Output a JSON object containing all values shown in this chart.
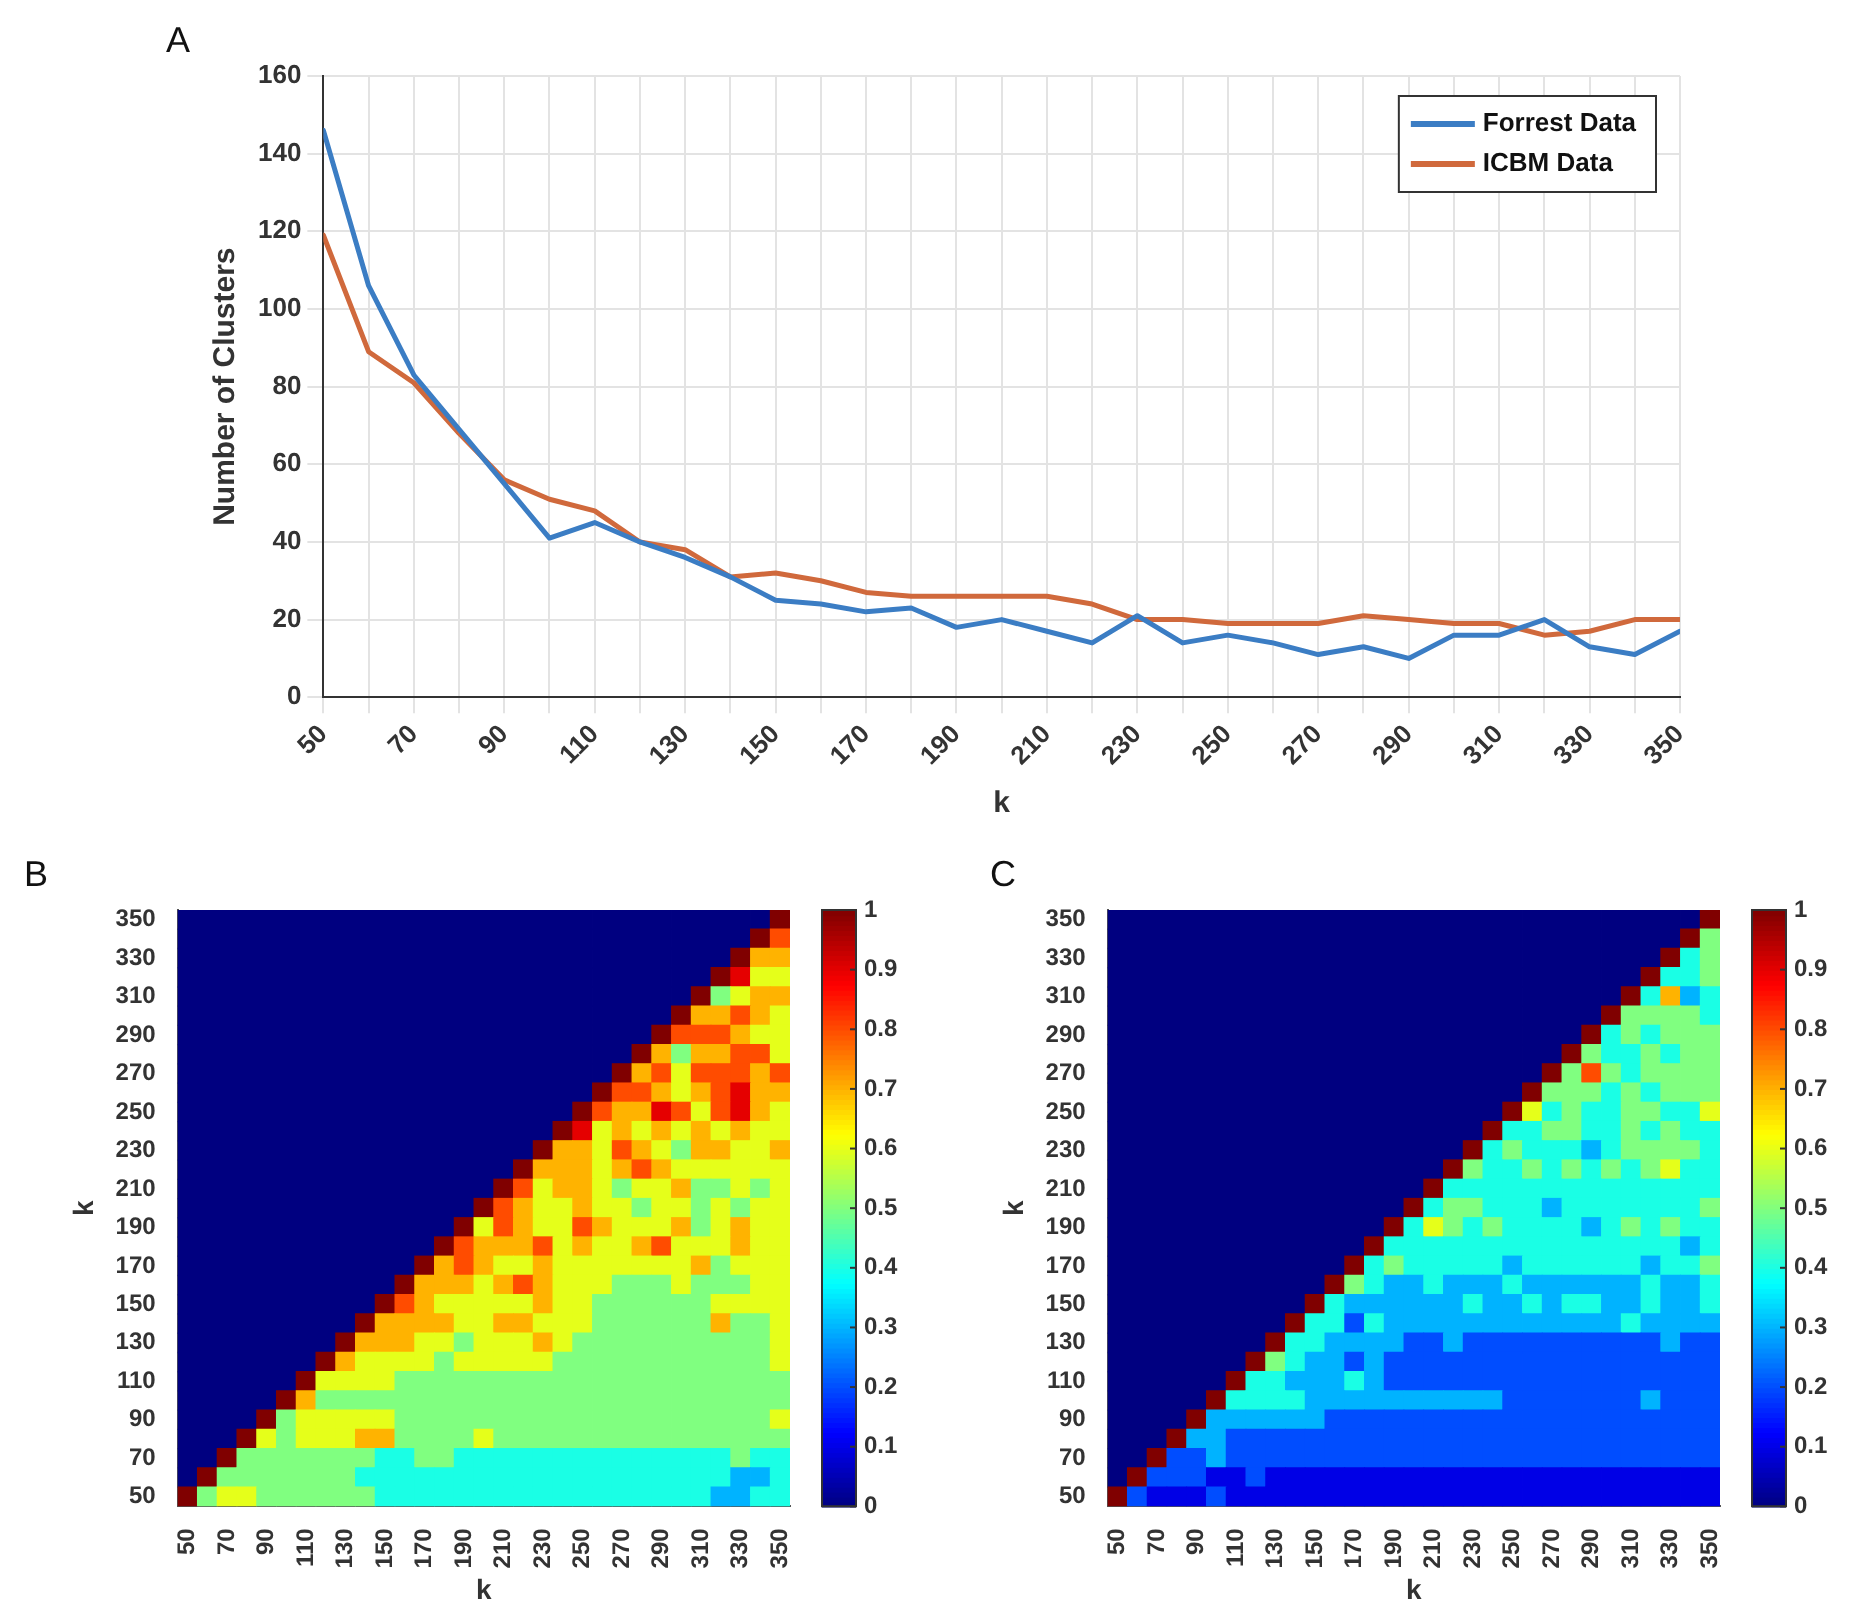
{
  "chart_data": [
    {
      "type": "line",
      "xlabel": "k",
      "ylabel": "Number of Clusters",
      "annotations": [
        "A"
      ],
      "x": [
        50,
        60,
        70,
        80,
        90,
        100,
        110,
        120,
        130,
        140,
        150,
        160,
        170,
        180,
        190,
        200,
        210,
        220,
        230,
        240,
        250,
        260,
        270,
        280,
        290,
        300,
        310,
        320,
        330,
        340,
        350
      ],
      "xlim": [
        50,
        350
      ],
      "xticks": [
        50,
        {
          "value": 60,
          "label": null
        },
        70,
        {
          "value": 80,
          "label": null
        },
        90,
        {
          "value": 100,
          "label": null
        },
        110,
        {
          "value": 120,
          "label": null
        },
        130,
        {
          "value": 140,
          "label": null
        },
        150,
        {
          "value": 160,
          "label": null
        },
        170,
        {
          "value": 180,
          "label": null
        },
        190,
        {
          "value": 200,
          "label": null
        },
        210,
        {
          "value": 220,
          "label": null
        },
        230,
        {
          "value": 240,
          "label": null
        },
        250,
        {
          "value": 260,
          "label": null
        },
        270,
        {
          "value": 280,
          "label": null
        },
        290,
        {
          "value": 300,
          "label": null
        },
        310,
        {
          "value": 320,
          "label": null
        },
        330,
        {
          "value": 340,
          "label": null
        },
        350
      ],
      "ylim": [
        0,
        160
      ],
      "yticks": [
        0,
        20,
        40,
        60,
        80,
        100,
        120,
        140,
        160
      ],
      "grid": true,
      "legend": "top right",
      "series": [
        {
          "name": "Forrest Data",
          "color": "#3b7dc4",
          "values": [
            146,
            106,
            83,
            69,
            55,
            41,
            45,
            40,
            36,
            31,
            25,
            24,
            22,
            23,
            18,
            20,
            17,
            14,
            21,
            14,
            16,
            14,
            11,
            13,
            10,
            16,
            16,
            20,
            13,
            11,
            17
          ]
        },
        {
          "name": "ICBM Data",
          "color": "#d0693c",
          "values": [
            119,
            89,
            81,
            68,
            56,
            51,
            48,
            40,
            38,
            31,
            32,
            30,
            27,
            26,
            26,
            26,
            26,
            24,
            20,
            20,
            19,
            19,
            19,
            21,
            20,
            19,
            19,
            16,
            17,
            20,
            20
          ]
        }
      ]
    },
    {
      "type": "heatmap",
      "xlabel": "k",
      "ylabel": "k",
      "annotations": [
        "B"
      ],
      "categories": [
        "50",
        null,
        "70",
        null,
        "90",
        null,
        "110",
        null,
        "130",
        null,
        "150",
        null,
        "170",
        null,
        "190",
        null,
        "210",
        null,
        "230",
        null,
        "250",
        null,
        "270",
        null,
        "290",
        null,
        "310",
        null,
        "330",
        null,
        "350"
      ],
      "y_categories": [
        "350",
        null,
        "330",
        null,
        "310",
        null,
        "290",
        null,
        "270",
        null,
        "250",
        null,
        "230",
        null,
        "210",
        null,
        "190",
        null,
        "170",
        null,
        "150",
        null,
        "130",
        null,
        "110",
        null,
        "90",
        null,
        "70",
        null,
        "50"
      ],
      "clim": [
        0,
        1
      ],
      "cticks": [
        0,
        0.1,
        0.2,
        0.3,
        0.4,
        0.5,
        0.6,
        0.7,
        0.8,
        0.9,
        1
      ],
      "cells": [
        [
          0,
          0,
          0,
          0,
          0,
          0,
          0,
          0,
          0,
          0,
          0,
          0,
          0,
          0,
          0,
          0,
          0,
          0,
          0,
          0,
          0,
          0,
          0,
          0,
          0,
          0,
          0,
          0,
          0,
          0,
          1
        ],
        [
          0,
          0,
          0,
          0,
          0,
          0,
          0,
          0,
          0,
          0,
          0,
          0,
          0,
          0,
          0,
          0,
          0,
          0,
          0,
          0,
          0,
          0,
          0,
          0,
          0,
          0,
          0,
          0,
          0,
          1,
          0.8
        ],
        [
          0,
          0,
          0,
          0,
          0,
          0,
          0,
          0,
          0,
          0,
          0,
          0,
          0,
          0,
          0,
          0,
          0,
          0,
          0,
          0,
          0,
          0,
          0,
          0,
          0,
          0,
          0,
          0,
          1,
          0.7,
          0.7
        ],
        [
          0,
          0,
          0,
          0,
          0,
          0,
          0,
          0,
          0,
          0,
          0,
          0,
          0,
          0,
          0,
          0,
          0,
          0,
          0,
          0,
          0,
          0,
          0,
          0,
          0,
          0,
          0,
          1,
          0.9,
          0.6,
          0.6
        ],
        [
          0,
          0,
          0,
          0,
          0,
          0,
          0,
          0,
          0,
          0,
          0,
          0,
          0,
          0,
          0,
          0,
          0,
          0,
          0,
          0,
          0,
          0,
          0,
          0,
          0,
          0,
          1,
          0.5,
          0.6,
          0.7,
          0.7
        ],
        [
          0,
          0,
          0,
          0,
          0,
          0,
          0,
          0,
          0,
          0,
          0,
          0,
          0,
          0,
          0,
          0,
          0,
          0,
          0,
          0,
          0,
          0,
          0,
          0,
          0,
          1,
          0.7,
          0.7,
          0.8,
          0.7,
          0.6
        ],
        [
          0,
          0,
          0,
          0,
          0,
          0,
          0,
          0,
          0,
          0,
          0,
          0,
          0,
          0,
          0,
          0,
          0,
          0,
          0,
          0,
          0,
          0,
          0,
          0,
          1,
          0.8,
          0.8,
          0.8,
          0.7,
          0.6,
          0.6
        ],
        [
          0,
          0,
          0,
          0,
          0,
          0,
          0,
          0,
          0,
          0,
          0,
          0,
          0,
          0,
          0,
          0,
          0,
          0,
          0,
          0,
          0,
          0,
          0,
          1,
          0.7,
          0.5,
          0.7,
          0.7,
          0.8,
          0.8,
          0.6
        ],
        [
          0,
          0,
          0,
          0,
          0,
          0,
          0,
          0,
          0,
          0,
          0,
          0,
          0,
          0,
          0,
          0,
          0,
          0,
          0,
          0,
          0,
          0,
          1,
          0.7,
          0.8,
          0.6,
          0.8,
          0.8,
          0.8,
          0.7,
          0.8
        ],
        [
          0,
          0,
          0,
          0,
          0,
          0,
          0,
          0,
          0,
          0,
          0,
          0,
          0,
          0,
          0,
          0,
          0,
          0,
          0,
          0,
          0,
          1,
          0.8,
          0.8,
          0.7,
          0.6,
          0.7,
          0.8,
          0.9,
          0.7,
          0.7
        ],
        [
          0,
          0,
          0,
          0,
          0,
          0,
          0,
          0,
          0,
          0,
          0,
          0,
          0,
          0,
          0,
          0,
          0,
          0,
          0,
          0,
          1,
          0.8,
          0.7,
          0.7,
          0.9,
          0.8,
          0.6,
          0.8,
          0.9,
          0.7,
          0.6
        ],
        [
          0,
          0,
          0,
          0,
          0,
          0,
          0,
          0,
          0,
          0,
          0,
          0,
          0,
          0,
          0,
          0,
          0,
          0,
          0,
          1,
          0.9,
          0.6,
          0.7,
          0.6,
          0.7,
          0.6,
          0.7,
          0.6,
          0.7,
          0.6,
          0.6
        ],
        [
          0,
          0,
          0,
          0,
          0,
          0,
          0,
          0,
          0,
          0,
          0,
          0,
          0,
          0,
          0,
          0,
          0,
          0,
          1,
          0.7,
          0.7,
          0.6,
          0.8,
          0.7,
          0.6,
          0.5,
          0.7,
          0.7,
          0.6,
          0.6,
          0.7
        ],
        [
          0,
          0,
          0,
          0,
          0,
          0,
          0,
          0,
          0,
          0,
          0,
          0,
          0,
          0,
          0,
          0,
          0,
          1,
          0.7,
          0.7,
          0.7,
          0.6,
          0.7,
          0.8,
          0.7,
          0.6,
          0.6,
          0.6,
          0.6,
          0.6,
          0.6
        ],
        [
          0,
          0,
          0,
          0,
          0,
          0,
          0,
          0,
          0,
          0,
          0,
          0,
          0,
          0,
          0,
          0,
          1,
          0.8,
          0.6,
          0.7,
          0.7,
          0.6,
          0.5,
          0.6,
          0.6,
          0.7,
          0.5,
          0.5,
          0.6,
          0.5,
          0.6
        ],
        [
          0,
          0,
          0,
          0,
          0,
          0,
          0,
          0,
          0,
          0,
          0,
          0,
          0,
          0,
          0,
          1,
          0.8,
          0.7,
          0.6,
          0.6,
          0.7,
          0.6,
          0.6,
          0.5,
          0.6,
          0.6,
          0.5,
          0.6,
          0.5,
          0.6,
          0.6
        ],
        [
          0,
          0,
          0,
          0,
          0,
          0,
          0,
          0,
          0,
          0,
          0,
          0,
          0,
          0,
          1,
          0.6,
          0.8,
          0.7,
          0.6,
          0.6,
          0.8,
          0.7,
          0.6,
          0.6,
          0.6,
          0.7,
          0.5,
          0.6,
          0.7,
          0.6,
          0.6
        ],
        [
          0,
          0,
          0,
          0,
          0,
          0,
          0,
          0,
          0,
          0,
          0,
          0,
          0,
          1,
          0.8,
          0.7,
          0.7,
          0.7,
          0.8,
          0.6,
          0.7,
          0.6,
          0.6,
          0.7,
          0.8,
          0.6,
          0.6,
          0.6,
          0.7,
          0.6,
          0.6
        ],
        [
          0,
          0,
          0,
          0,
          0,
          0,
          0,
          0,
          0,
          0,
          0,
          0,
          1,
          0.7,
          0.8,
          0.7,
          0.6,
          0.6,
          0.7,
          0.6,
          0.6,
          0.6,
          0.6,
          0.6,
          0.6,
          0.6,
          0.7,
          0.5,
          0.6,
          0.6,
          0.6
        ],
        [
          0,
          0,
          0,
          0,
          0,
          0,
          0,
          0,
          0,
          0,
          0,
          1,
          0.7,
          0.7,
          0.7,
          0.6,
          0.7,
          0.8,
          0.7,
          0.6,
          0.6,
          0.6,
          0.5,
          0.5,
          0.5,
          0.6,
          0.5,
          0.5,
          0.5,
          0.6,
          0.6
        ],
        [
          0,
          0,
          0,
          0,
          0,
          0,
          0,
          0,
          0,
          0,
          1,
          0.8,
          0.7,
          0.6,
          0.6,
          0.6,
          0.6,
          0.6,
          0.7,
          0.6,
          0.6,
          0.5,
          0.5,
          0.5,
          0.5,
          0.5,
          0.5,
          0.6,
          0.6,
          0.6,
          0.6
        ],
        [
          0,
          0,
          0,
          0,
          0,
          0,
          0,
          0,
          0,
          1,
          0.7,
          0.7,
          0.7,
          0.7,
          0.6,
          0.6,
          0.7,
          0.7,
          0.6,
          0.6,
          0.6,
          0.5,
          0.5,
          0.5,
          0.5,
          0.5,
          0.5,
          0.7,
          0.5,
          0.5,
          0.6
        ],
        [
          0,
          0,
          0,
          0,
          0,
          0,
          0,
          0,
          1,
          0.7,
          0.7,
          0.7,
          0.6,
          0.6,
          0.5,
          0.6,
          0.6,
          0.6,
          0.7,
          0.6,
          0.5,
          0.5,
          0.5,
          0.5,
          0.5,
          0.5,
          0.5,
          0.5,
          0.5,
          0.5,
          0.6
        ],
        [
          0,
          0,
          0,
          0,
          0,
          0,
          0,
          1,
          0.7,
          0.6,
          0.6,
          0.6,
          0.6,
          0.5,
          0.6,
          0.6,
          0.6,
          0.6,
          0.6,
          0.5,
          0.5,
          0.5,
          0.5,
          0.5,
          0.5,
          0.5,
          0.5,
          0.5,
          0.5,
          0.5,
          0.6
        ],
        [
          0,
          0,
          0,
          0,
          0,
          0,
          1,
          0.6,
          0.6,
          0.6,
          0.6,
          0.5,
          0.5,
          0.5,
          0.5,
          0.5,
          0.5,
          0.5,
          0.5,
          0.5,
          0.5,
          0.5,
          0.5,
          0.5,
          0.5,
          0.5,
          0.5,
          0.5,
          0.5,
          0.5,
          0.5
        ],
        [
          0,
          0,
          0,
          0,
          0,
          1,
          0.7,
          0.5,
          0.5,
          0.5,
          0.5,
          0.5,
          0.5,
          0.5,
          0.5,
          0.5,
          0.5,
          0.5,
          0.5,
          0.5,
          0.5,
          0.5,
          0.5,
          0.5,
          0.5,
          0.5,
          0.5,
          0.5,
          0.5,
          0.5,
          0.5
        ],
        [
          0,
          0,
          0,
          0,
          1,
          0.5,
          0.6,
          0.6,
          0.6,
          0.6,
          0.6,
          0.5,
          0.5,
          0.5,
          0.5,
          0.5,
          0.5,
          0.5,
          0.5,
          0.5,
          0.5,
          0.5,
          0.5,
          0.5,
          0.5,
          0.5,
          0.5,
          0.5,
          0.5,
          0.5,
          0.6
        ],
        [
          0,
          0,
          0,
          1,
          0.6,
          0.5,
          0.6,
          0.6,
          0.6,
          0.7,
          0.7,
          0.5,
          0.5,
          0.5,
          0.5,
          0.6,
          0.5,
          0.5,
          0.5,
          0.5,
          0.5,
          0.5,
          0.5,
          0.5,
          0.5,
          0.5,
          0.5,
          0.5,
          0.5,
          0.5,
          0.5
        ],
        [
          0,
          0,
          1,
          0.5,
          0.5,
          0.5,
          0.5,
          0.5,
          0.5,
          0.5,
          0.4,
          0.4,
          0.5,
          0.5,
          0.4,
          0.4,
          0.4,
          0.4,
          0.4,
          0.4,
          0.4,
          0.4,
          0.4,
          0.4,
          0.4,
          0.4,
          0.4,
          0.4,
          0.5,
          0.4,
          0.4
        ],
        [
          0,
          1,
          0.5,
          0.5,
          0.5,
          0.5,
          0.5,
          0.5,
          0.5,
          0.4,
          0.4,
          0.4,
          0.4,
          0.4,
          0.4,
          0.4,
          0.4,
          0.4,
          0.4,
          0.4,
          0.4,
          0.4,
          0.4,
          0.4,
          0.4,
          0.4,
          0.4,
          0.4,
          0.3,
          0.3,
          0.4
        ],
        [
          1,
          0.5,
          0.6,
          0.6,
          0.5,
          0.5,
          0.5,
          0.5,
          0.5,
          0.5,
          0.4,
          0.4,
          0.4,
          0.4,
          0.4,
          0.4,
          0.4,
          0.4,
          0.4,
          0.4,
          0.4,
          0.4,
          0.4,
          0.4,
          0.4,
          0.4,
          0.4,
          0.3,
          0.3,
          0.4,
          0.4
        ]
      ]
    },
    {
      "type": "heatmap",
      "xlabel": "k",
      "ylabel": "k",
      "annotations": [
        "C"
      ],
      "categories": [
        "50",
        null,
        "70",
        null,
        "90",
        null,
        "110",
        null,
        "130",
        null,
        "150",
        null,
        "170",
        null,
        "190",
        null,
        "210",
        null,
        "230",
        null,
        "250",
        null,
        "270",
        null,
        "290",
        null,
        "310",
        null,
        "330",
        null,
        "350"
      ],
      "y_categories": [
        "350",
        null,
        "330",
        null,
        "310",
        null,
        "290",
        null,
        "270",
        null,
        "250",
        null,
        "230",
        null,
        "210",
        null,
        "190",
        null,
        "170",
        null,
        "150",
        null,
        "130",
        null,
        "110",
        null,
        "90",
        null,
        "70",
        null,
        "50"
      ],
      "clim": [
        0,
        1
      ],
      "cticks": [
        0,
        0.1,
        0.2,
        0.3,
        0.4,
        0.5,
        0.6,
        0.7,
        0.8,
        0.9,
        1
      ],
      "cells": [
        [
          0,
          0,
          0,
          0,
          0,
          0,
          0,
          0,
          0,
          0,
          0,
          0,
          0,
          0,
          0,
          0,
          0,
          0,
          0,
          0,
          0,
          0,
          0,
          0,
          0,
          0,
          0,
          0,
          0,
          0,
          1
        ],
        [
          0,
          0,
          0,
          0,
          0,
          0,
          0,
          0,
          0,
          0,
          0,
          0,
          0,
          0,
          0,
          0,
          0,
          0,
          0,
          0,
          0,
          0,
          0,
          0,
          0,
          0,
          0,
          0,
          0,
          1,
          0.5
        ],
        [
          0,
          0,
          0,
          0,
          0,
          0,
          0,
          0,
          0,
          0,
          0,
          0,
          0,
          0,
          0,
          0,
          0,
          0,
          0,
          0,
          0,
          0,
          0,
          0,
          0,
          0,
          0,
          0,
          1,
          0.4,
          0.5
        ],
        [
          0,
          0,
          0,
          0,
          0,
          0,
          0,
          0,
          0,
          0,
          0,
          0,
          0,
          0,
          0,
          0,
          0,
          0,
          0,
          0,
          0,
          0,
          0,
          0,
          0,
          0,
          0,
          1,
          0.4,
          0.4,
          0.5
        ],
        [
          0,
          0,
          0,
          0,
          0,
          0,
          0,
          0,
          0,
          0,
          0,
          0,
          0,
          0,
          0,
          0,
          0,
          0,
          0,
          0,
          0,
          0,
          0,
          0,
          0,
          0,
          1,
          0.4,
          0.7,
          0.3,
          0.4
        ],
        [
          0,
          0,
          0,
          0,
          0,
          0,
          0,
          0,
          0,
          0,
          0,
          0,
          0,
          0,
          0,
          0,
          0,
          0,
          0,
          0,
          0,
          0,
          0,
          0,
          0,
          1,
          0.5,
          0.5,
          0.5,
          0.5,
          0.4
        ],
        [
          0,
          0,
          0,
          0,
          0,
          0,
          0,
          0,
          0,
          0,
          0,
          0,
          0,
          0,
          0,
          0,
          0,
          0,
          0,
          0,
          0,
          0,
          0,
          0,
          1,
          0.4,
          0.5,
          0.4,
          0.5,
          0.5,
          0.5
        ],
        [
          0,
          0,
          0,
          0,
          0,
          0,
          0,
          0,
          0,
          0,
          0,
          0,
          0,
          0,
          0,
          0,
          0,
          0,
          0,
          0,
          0,
          0,
          0,
          1,
          0.5,
          0.4,
          0.4,
          0.5,
          0.4,
          0.5,
          0.5
        ],
        [
          0,
          0,
          0,
          0,
          0,
          0,
          0,
          0,
          0,
          0,
          0,
          0,
          0,
          0,
          0,
          0,
          0,
          0,
          0,
          0,
          0,
          0,
          1,
          0.5,
          0.8,
          0.5,
          0.4,
          0.5,
          0.5,
          0.5,
          0.5
        ],
        [
          0,
          0,
          0,
          0,
          0,
          0,
          0,
          0,
          0,
          0,
          0,
          0,
          0,
          0,
          0,
          0,
          0,
          0,
          0,
          0,
          0,
          1,
          0.5,
          0.5,
          0.5,
          0.4,
          0.5,
          0.4,
          0.5,
          0.5,
          0.5
        ],
        [
          0,
          0,
          0,
          0,
          0,
          0,
          0,
          0,
          0,
          0,
          0,
          0,
          0,
          0,
          0,
          0,
          0,
          0,
          0,
          0,
          1,
          0.6,
          0.4,
          0.5,
          0.4,
          0.4,
          0.5,
          0.5,
          0.4,
          0.4,
          0.6
        ],
        [
          0,
          0,
          0,
          0,
          0,
          0,
          0,
          0,
          0,
          0,
          0,
          0,
          0,
          0,
          0,
          0,
          0,
          0,
          0,
          1,
          0.4,
          0.4,
          0.5,
          0.5,
          0.4,
          0.4,
          0.5,
          0.4,
          0.5,
          0.4,
          0.4
        ],
        [
          0,
          0,
          0,
          0,
          0,
          0,
          0,
          0,
          0,
          0,
          0,
          0,
          0,
          0,
          0,
          0,
          0,
          0,
          1,
          0.4,
          0.5,
          0.4,
          0.4,
          0.4,
          0.3,
          0.4,
          0.5,
          0.5,
          0.5,
          0.5,
          0.4
        ],
        [
          0,
          0,
          0,
          0,
          0,
          0,
          0,
          0,
          0,
          0,
          0,
          0,
          0,
          0,
          0,
          0,
          0,
          1,
          0.5,
          0.4,
          0.4,
          0.5,
          0.4,
          0.5,
          0.4,
          0.5,
          0.4,
          0.5,
          0.6,
          0.4,
          0.4
        ],
        [
          0,
          0,
          0,
          0,
          0,
          0,
          0,
          0,
          0,
          0,
          0,
          0,
          0,
          0,
          0,
          0,
          1,
          0.4,
          0.4,
          0.4,
          0.4,
          0.4,
          0.4,
          0.4,
          0.4,
          0.4,
          0.4,
          0.4,
          0.4,
          0.4,
          0.4
        ],
        [
          0,
          0,
          0,
          0,
          0,
          0,
          0,
          0,
          0,
          0,
          0,
          0,
          0,
          0,
          0,
          1,
          0.4,
          0.5,
          0.5,
          0.4,
          0.4,
          0.4,
          0.3,
          0.4,
          0.4,
          0.4,
          0.4,
          0.4,
          0.4,
          0.4,
          0.5
        ],
        [
          0,
          0,
          0,
          0,
          0,
          0,
          0,
          0,
          0,
          0,
          0,
          0,
          0,
          0,
          1,
          0.4,
          0.6,
          0.5,
          0.4,
          0.5,
          0.4,
          0.4,
          0.4,
          0.4,
          0.3,
          0.4,
          0.5,
          0.4,
          0.5,
          0.4,
          0.4
        ],
        [
          0,
          0,
          0,
          0,
          0,
          0,
          0,
          0,
          0,
          0,
          0,
          0,
          0,
          1,
          0.4,
          0.4,
          0.4,
          0.4,
          0.4,
          0.4,
          0.4,
          0.4,
          0.4,
          0.4,
          0.4,
          0.4,
          0.4,
          0.4,
          0.4,
          0.3,
          0.4
        ],
        [
          0,
          0,
          0,
          0,
          0,
          0,
          0,
          0,
          0,
          0,
          0,
          0,
          1,
          0.4,
          0.5,
          0.4,
          0.4,
          0.4,
          0.4,
          0.4,
          0.3,
          0.4,
          0.4,
          0.4,
          0.4,
          0.4,
          0.4,
          0.3,
          0.4,
          0.4,
          0.5
        ],
        [
          0,
          0,
          0,
          0,
          0,
          0,
          0,
          0,
          0,
          0,
          0,
          1,
          0.5,
          0.4,
          0.3,
          0.3,
          0.4,
          0.3,
          0.3,
          0.3,
          0.4,
          0.3,
          0.3,
          0.3,
          0.3,
          0.3,
          0.3,
          0.4,
          0.3,
          0.3,
          0.4
        ],
        [
          0,
          0,
          0,
          0,
          0,
          0,
          0,
          0,
          0,
          0,
          1,
          0.4,
          0.3,
          0.3,
          0.3,
          0.3,
          0.3,
          0.3,
          0.4,
          0.3,
          0.3,
          0.4,
          0.3,
          0.4,
          0.4,
          0.3,
          0.3,
          0.4,
          0.3,
          0.3,
          0.4
        ],
        [
          0,
          0,
          0,
          0,
          0,
          0,
          0,
          0,
          0,
          1,
          0.4,
          0.4,
          0.2,
          0.4,
          0.3,
          0.3,
          0.3,
          0.3,
          0.3,
          0.3,
          0.3,
          0.3,
          0.3,
          0.3,
          0.3,
          0.3,
          0.4,
          0.3,
          0.3,
          0.3,
          0.3
        ],
        [
          0,
          0,
          0,
          0,
          0,
          0,
          0,
          0,
          1,
          0.4,
          0.4,
          0.3,
          0.3,
          0.3,
          0.3,
          0.2,
          0.2,
          0.3,
          0.2,
          0.2,
          0.2,
          0.2,
          0.2,
          0.2,
          0.2,
          0.2,
          0.2,
          0.2,
          0.3,
          0.2,
          0.2
        ],
        [
          0,
          0,
          0,
          0,
          0,
          0,
          0,
          1,
          0.5,
          0.4,
          0.3,
          0.3,
          0.2,
          0.3,
          0.2,
          0.2,
          0.2,
          0.2,
          0.2,
          0.2,
          0.2,
          0.2,
          0.2,
          0.2,
          0.2,
          0.2,
          0.2,
          0.2,
          0.2,
          0.2,
          0.2
        ],
        [
          0,
          0,
          0,
          0,
          0,
          0,
          1,
          0.4,
          0.4,
          0.3,
          0.3,
          0.3,
          0.4,
          0.3,
          0.2,
          0.2,
          0.2,
          0.2,
          0.2,
          0.2,
          0.2,
          0.2,
          0.2,
          0.2,
          0.2,
          0.2,
          0.2,
          0.2,
          0.2,
          0.2,
          0.2
        ],
        [
          0,
          0,
          0,
          0,
          0,
          1,
          0.4,
          0.4,
          0.4,
          0.4,
          0.3,
          0.3,
          0.3,
          0.3,
          0.3,
          0.3,
          0.3,
          0.3,
          0.3,
          0.3,
          0.2,
          0.2,
          0.2,
          0.2,
          0.2,
          0.2,
          0.2,
          0.3,
          0.2,
          0.2,
          0.2
        ],
        [
          0,
          0,
          0,
          0,
          1,
          0.3,
          0.3,
          0.3,
          0.3,
          0.3,
          0.3,
          0.2,
          0.2,
          0.2,
          0.2,
          0.2,
          0.2,
          0.2,
          0.2,
          0.2,
          0.2,
          0.2,
          0.2,
          0.2,
          0.2,
          0.2,
          0.2,
          0.2,
          0.2,
          0.2,
          0.2
        ],
        [
          0,
          0,
          0,
          1,
          0.3,
          0.3,
          0.2,
          0.2,
          0.2,
          0.2,
          0.2,
          0.2,
          0.2,
          0.2,
          0.2,
          0.2,
          0.2,
          0.2,
          0.2,
          0.2,
          0.2,
          0.2,
          0.2,
          0.2,
          0.2,
          0.2,
          0.2,
          0.2,
          0.2,
          0.2,
          0.2
        ],
        [
          0,
          0,
          1,
          0.2,
          0.2,
          0.3,
          0.2,
          0.2,
          0.2,
          0.2,
          0.2,
          0.2,
          0.2,
          0.2,
          0.2,
          0.2,
          0.2,
          0.2,
          0.2,
          0.2,
          0.2,
          0.2,
          0.2,
          0.2,
          0.2,
          0.2,
          0.2,
          0.2,
          0.2,
          0.2,
          0.2
        ],
        [
          0,
          1,
          0.2,
          0.2,
          0.2,
          0.1,
          0.1,
          0.2,
          0.1,
          0.1,
          0.1,
          0.1,
          0.1,
          0.1,
          0.1,
          0.1,
          0.1,
          0.1,
          0.1,
          0.1,
          0.1,
          0.1,
          0.1,
          0.1,
          0.1,
          0.1,
          0.1,
          0.1,
          0.1,
          0.1,
          0.1
        ],
        [
          1,
          0.2,
          0.1,
          0.1,
          0.1,
          0.2,
          0.1,
          0.1,
          0.1,
          0.1,
          0.1,
          0.1,
          0.1,
          0.1,
          0.1,
          0.1,
          0.1,
          0.1,
          0.1,
          0.1,
          0.1,
          0.1,
          0.1,
          0.1,
          0.1,
          0.1,
          0.1,
          0.1,
          0.1,
          0.1,
          0.1
        ]
      ]
    }
  ]
}
